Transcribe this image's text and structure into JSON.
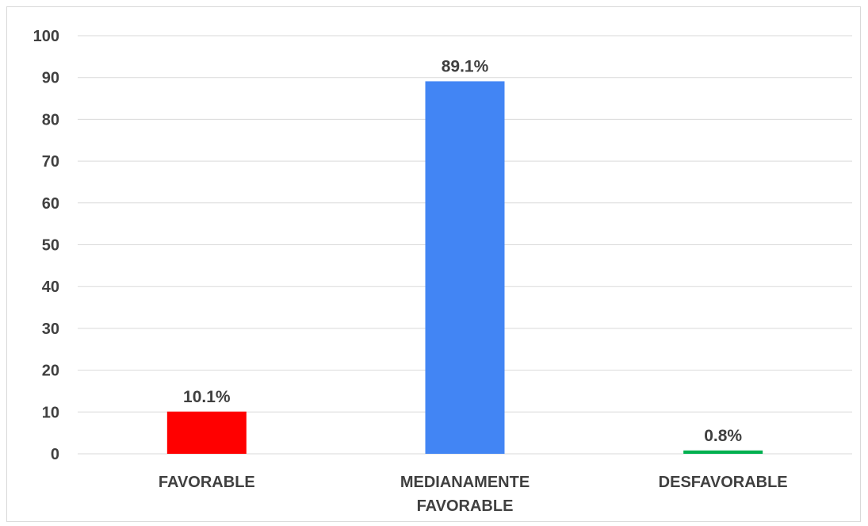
{
  "chart_data": {
    "type": "bar",
    "categories": [
      [
        "FAVORABLE"
      ],
      [
        "MEDIANAMENTE",
        "FAVORABLE"
      ],
      [
        "DESFAVORABLE"
      ]
    ],
    "values": [
      10.1,
      89.1,
      0.8
    ],
    "data_labels": [
      "10.1%",
      "89.1%",
      "0.8%"
    ],
    "colors": [
      "#ff0000",
      "#4285f4",
      "#00b050"
    ],
    "ylim": [
      0,
      100
    ],
    "yticks": [
      0,
      10,
      20,
      30,
      40,
      50,
      60,
      70,
      80,
      90,
      100
    ],
    "grid": true,
    "legend": "none"
  }
}
